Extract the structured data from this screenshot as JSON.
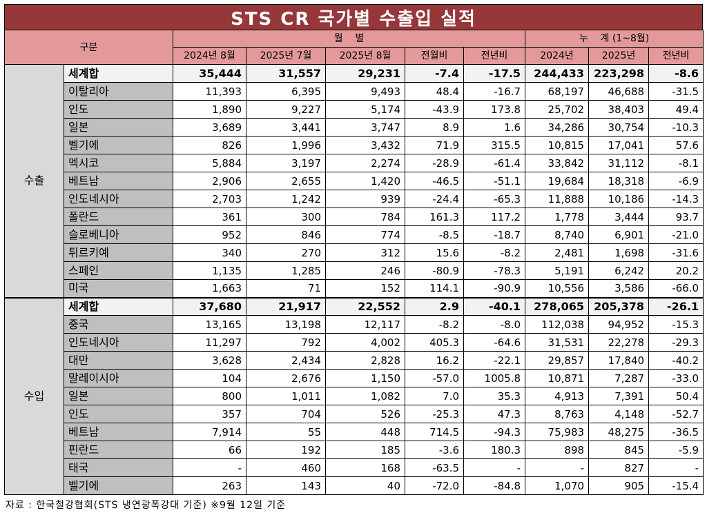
{
  "title": "STS CR 국가별 수출입 실적",
  "header": {
    "category": "구분",
    "monthly": "월    별",
    "cumulative": "누    계 (1~8월)",
    "cols": [
      "2024년 8월",
      "2025년 7월",
      "2025년 8월",
      "전월비",
      "전년비",
      "2024년",
      "2025년",
      "전년비"
    ]
  },
  "sections": [
    {
      "label": "수출",
      "rows": [
        {
          "name": "세계합",
          "total": true,
          "v": [
            "35,444",
            "31,557",
            "29,231",
            "-7.4",
            "-17.5",
            "244,433",
            "223,298",
            "-8.6"
          ]
        },
        {
          "name": "이탈리아",
          "v": [
            "11,393",
            "6,395",
            "9,493",
            "48.4",
            "-16.7",
            "68,197",
            "46,688",
            "-31.5"
          ]
        },
        {
          "name": "인도",
          "v": [
            "1,890",
            "9,227",
            "5,174",
            "-43.9",
            "173.8",
            "25,702",
            "38,403",
            "49.4"
          ]
        },
        {
          "name": "일본",
          "v": [
            "3,689",
            "3,441",
            "3,747",
            "8.9",
            "1.6",
            "34,286",
            "30,754",
            "-10.3"
          ]
        },
        {
          "name": "벨기에",
          "v": [
            "826",
            "1,996",
            "3,432",
            "71.9",
            "315.5",
            "10,815",
            "17,041",
            "57.6"
          ]
        },
        {
          "name": "멕시코",
          "v": [
            "5,884",
            "3,197",
            "2,274",
            "-28.9",
            "-61.4",
            "33,842",
            "31,112",
            "-8.1"
          ]
        },
        {
          "name": "베트남",
          "v": [
            "2,906",
            "2,655",
            "1,420",
            "-46.5",
            "-51.1",
            "19,684",
            "18,318",
            "-6.9"
          ]
        },
        {
          "name": "인도네시아",
          "v": [
            "2,703",
            "1,242",
            "939",
            "-24.4",
            "-65.3",
            "11,888",
            "10,186",
            "-14.3"
          ]
        },
        {
          "name": "폴란드",
          "v": [
            "361",
            "300",
            "784",
            "161.3",
            "117.2",
            "1,778",
            "3,444",
            "93.7"
          ]
        },
        {
          "name": "슬로베니아",
          "v": [
            "952",
            "846",
            "774",
            "-8.5",
            "-18.7",
            "8,740",
            "6,901",
            "-21.0"
          ]
        },
        {
          "name": "튀르키예",
          "v": [
            "340",
            "270",
            "312",
            "15.6",
            "-8.2",
            "2,481",
            "1,698",
            "-31.6"
          ]
        },
        {
          "name": "스페인",
          "v": [
            "1,135",
            "1,285",
            "246",
            "-80.9",
            "-78.3",
            "5,191",
            "6,242",
            "20.2"
          ]
        },
        {
          "name": "미국",
          "v": [
            "1,663",
            "71",
            "152",
            "114.1",
            "-90.9",
            "10,556",
            "3,586",
            "-66.0"
          ]
        }
      ]
    },
    {
      "label": "수입",
      "rows": [
        {
          "name": "세계합",
          "total": true,
          "v": [
            "37,680",
            "21,917",
            "22,552",
            "2.9",
            "-40.1",
            "278,065",
            "205,378",
            "-26.1"
          ]
        },
        {
          "name": "중국",
          "v": [
            "13,165",
            "13,198",
            "12,117",
            "-8.2",
            "-8.0",
            "112,038",
            "94,952",
            "-15.3"
          ]
        },
        {
          "name": "인도네시아",
          "v": [
            "11,297",
            "792",
            "4,002",
            "405.3",
            "-64.6",
            "31,531",
            "22,278",
            "-29.3"
          ]
        },
        {
          "name": "대만",
          "v": [
            "3,628",
            "2,434",
            "2,828",
            "16.2",
            "-22.1",
            "29,857",
            "17,840",
            "-40.2"
          ]
        },
        {
          "name": "말레이시아",
          "v": [
            "104",
            "2,676",
            "1,150",
            "-57.0",
            "1005.8",
            "10,871",
            "7,287",
            "-33.0"
          ]
        },
        {
          "name": "일본",
          "v": [
            "800",
            "1,011",
            "1,082",
            "7.0",
            "35.3",
            "4,913",
            "7,391",
            "50.4"
          ]
        },
        {
          "name": "인도",
          "v": [
            "357",
            "704",
            "526",
            "-25.3",
            "47.3",
            "8,763",
            "4,148",
            "-52.7"
          ]
        },
        {
          "name": "베트남",
          "v": [
            "7,914",
            "55",
            "448",
            "714.5",
            "-94.3",
            "75,983",
            "48,275",
            "-36.5"
          ]
        },
        {
          "name": "핀란드",
          "v": [
            "66",
            "192",
            "185",
            "-3.6",
            "180.3",
            "898",
            "845",
            "-5.9"
          ]
        },
        {
          "name": "태국",
          "v": [
            "-",
            "460",
            "168",
            "-63.5",
            "-",
            "-",
            "827",
            "-"
          ]
        },
        {
          "name": "벨기에",
          "v": [
            "263",
            "143",
            "40",
            "-72.0",
            "-84.8",
            "1,070",
            "905",
            "-15.4"
          ]
        }
      ]
    }
  ],
  "footer": "자료 : 한국철강협회(STS 냉연광폭강대 기준) ※9월 12일 기준"
}
